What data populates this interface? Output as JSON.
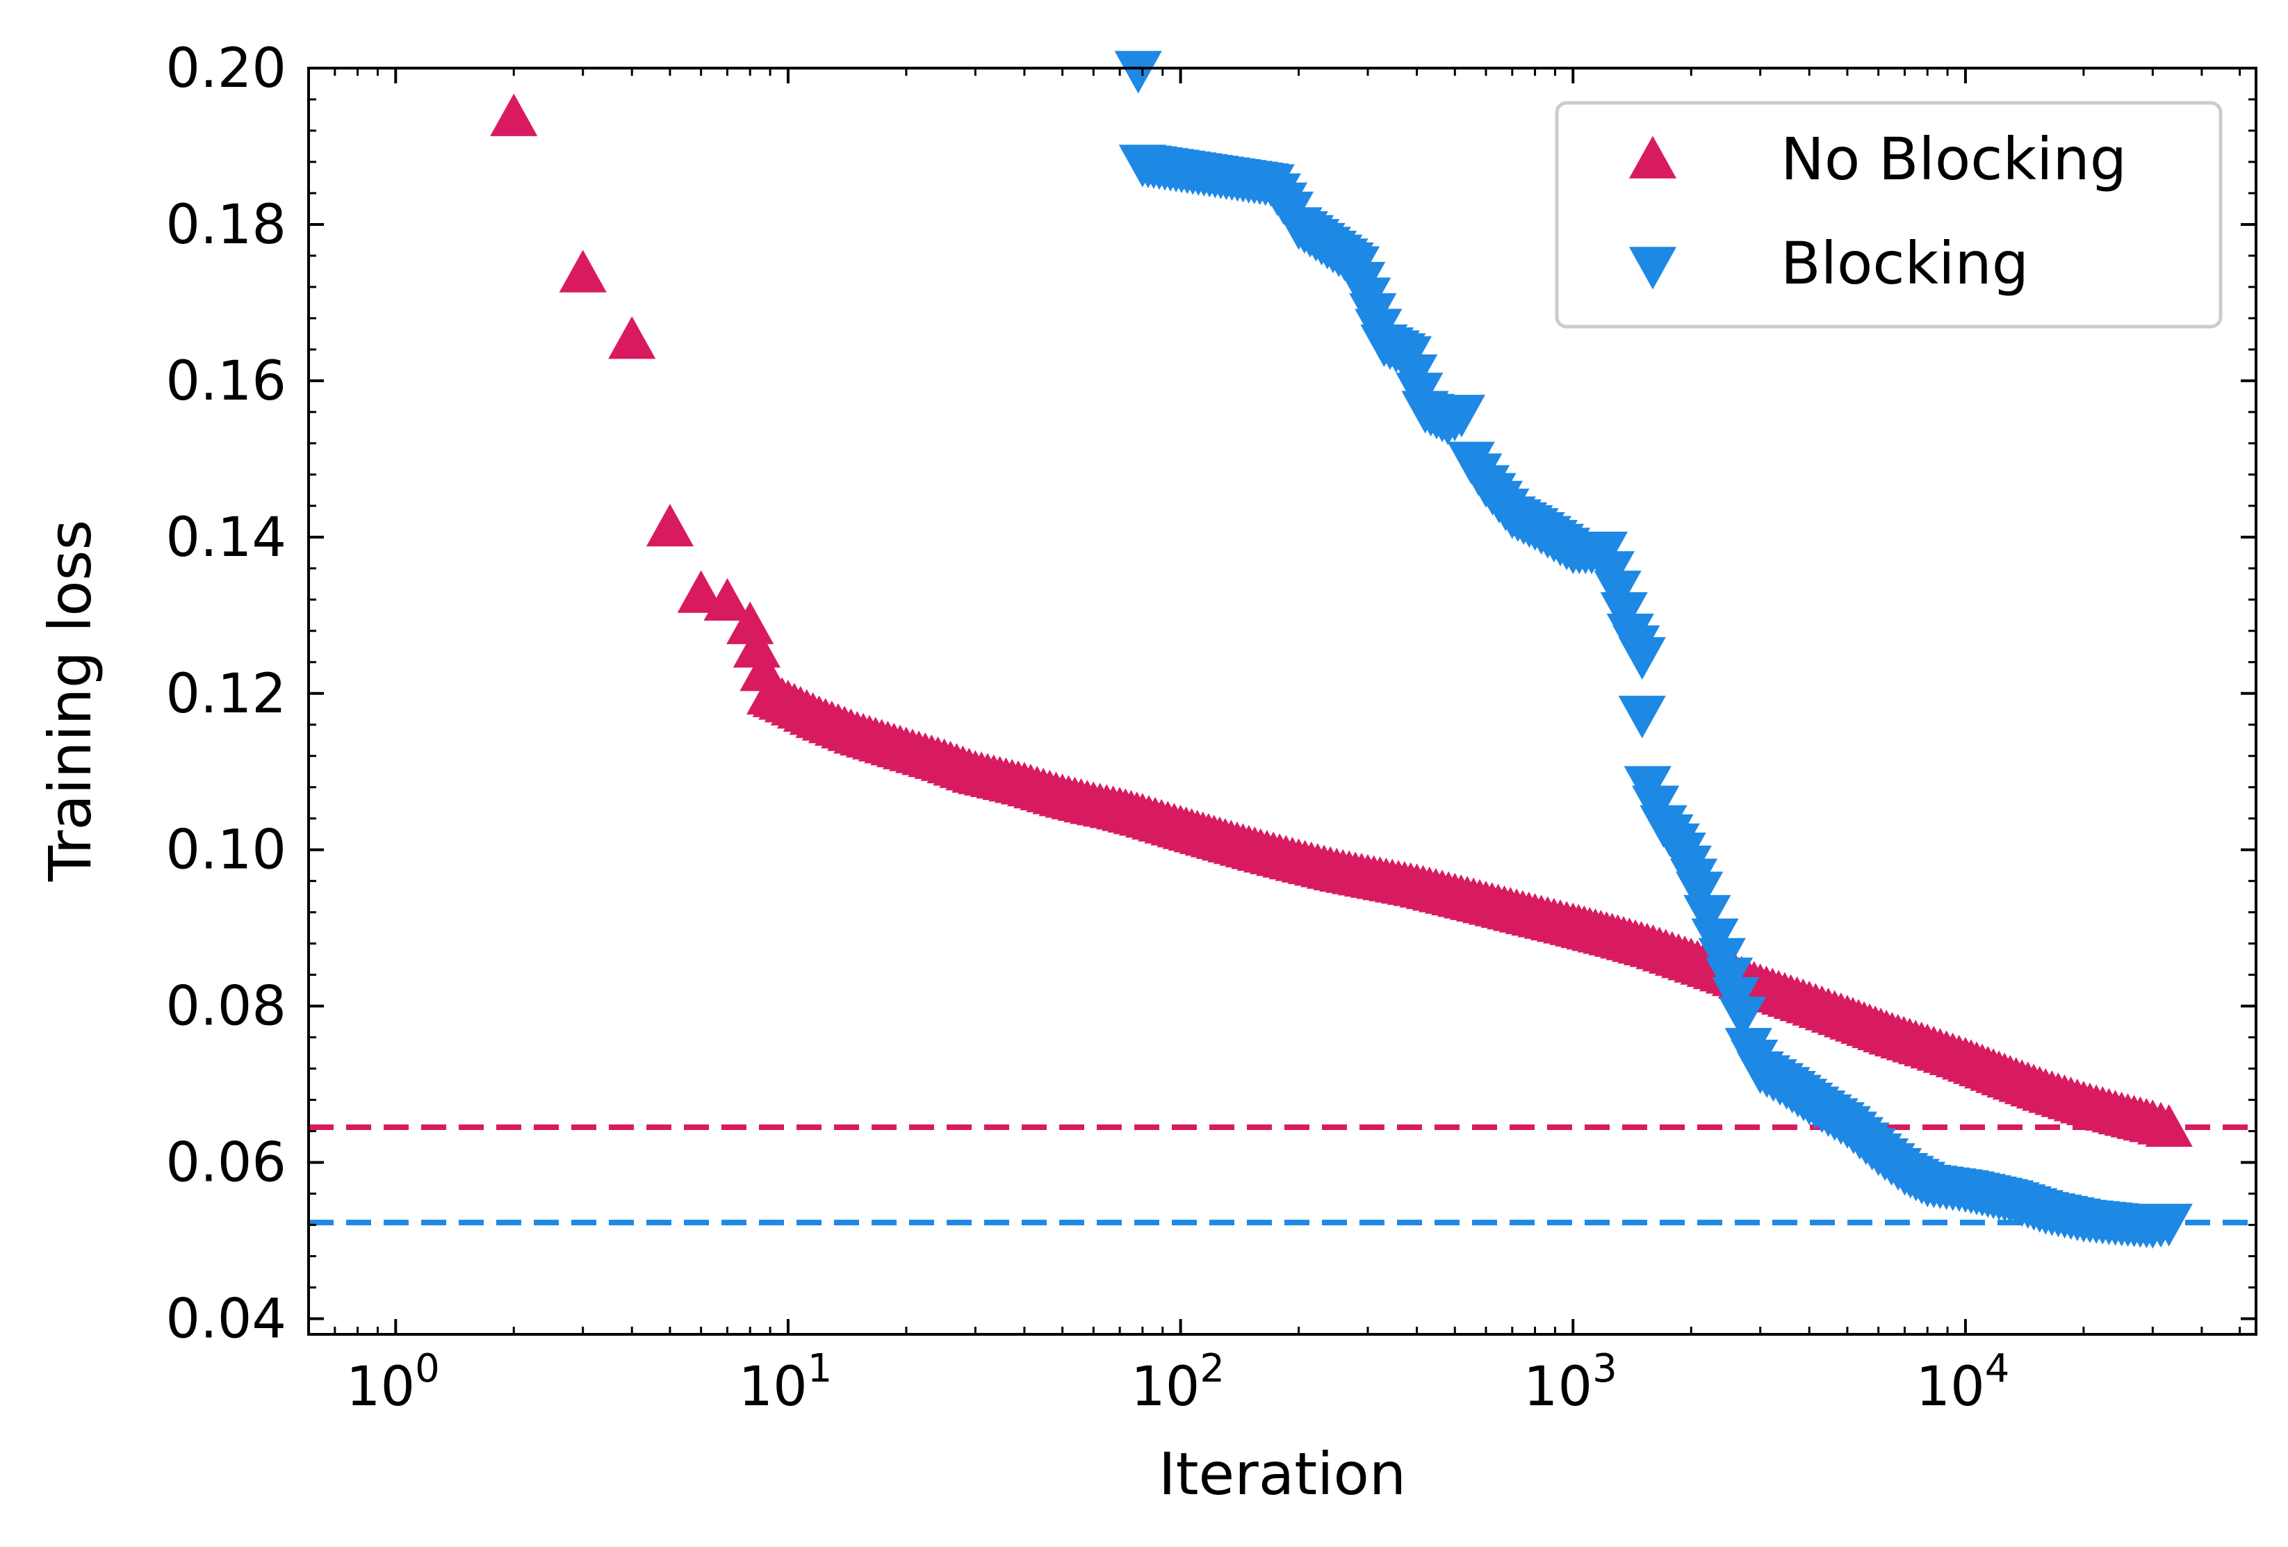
{
  "chart_data": {
    "type": "scatter",
    "title": "",
    "xlabel": "Iteration",
    "ylabel": "Training loss",
    "xscale": "log",
    "xlim": [
      0.6,
      55000
    ],
    "ylim": [
      0.038,
      0.2
    ],
    "xticks": [
      {
        "value": 1,
        "base": "10",
        "exp": "0"
      },
      {
        "value": 10,
        "base": "10",
        "exp": "1"
      },
      {
        "value": 100,
        "base": "10",
        "exp": "2"
      },
      {
        "value": 1000,
        "base": "10",
        "exp": "3"
      },
      {
        "value": 10000,
        "base": "10",
        "exp": "4"
      }
    ],
    "yticks": [
      "0.04",
      "0.06",
      "0.08",
      "0.10",
      "0.12",
      "0.14",
      "0.16",
      "0.18",
      "0.20"
    ],
    "grid": false,
    "legend": {
      "location": "upper right"
    },
    "series": [
      {
        "name": "No Blocking",
        "marker": "triangle-up",
        "color": "#d81b60",
        "points": [
          [
            2,
            0.1935
          ],
          [
            3,
            0.1735
          ],
          [
            4,
            0.165
          ],
          [
            5,
            0.141
          ],
          [
            6,
            0.1325
          ],
          [
            7,
            0.1315
          ],
          [
            8,
            0.1285
          ],
          [
            9,
            0.1195
          ],
          [
            10,
            0.1185
          ],
          [
            12,
            0.1165
          ],
          [
            15,
            0.1145
          ],
          [
            20,
            0.1125
          ],
          [
            25,
            0.111
          ],
          [
            30,
            0.1095
          ],
          [
            40,
            0.108
          ],
          [
            50,
            0.1065
          ],
          [
            60,
            0.1055
          ],
          [
            70,
            0.1048
          ],
          [
            80,
            0.104
          ],
          [
            100,
            0.1025
          ],
          [
            130,
            0.1008
          ],
          [
            160,
            0.0995
          ],
          [
            200,
            0.0982
          ],
          [
            250,
            0.097
          ],
          [
            300,
            0.0962
          ],
          [
            400,
            0.095
          ],
          [
            500,
            0.0938
          ],
          [
            600,
            0.0928
          ],
          [
            800,
            0.0912
          ],
          [
            1000,
            0.09
          ],
          [
            1300,
            0.0885
          ],
          [
            1600,
            0.0872
          ],
          [
            2000,
            0.0855
          ],
          [
            2500,
            0.0838
          ],
          [
            3000,
            0.0822
          ],
          [
            4000,
            0.08
          ],
          [
            5000,
            0.0782
          ],
          [
            6500,
            0.076
          ],
          [
            8000,
            0.0745
          ],
          [
            10000,
            0.0728
          ],
          [
            13000,
            0.0705
          ],
          [
            16000,
            0.0688
          ],
          [
            20000,
            0.0672
          ],
          [
            25000,
            0.0658
          ],
          [
            30000,
            0.0648
          ],
          [
            33000,
            0.0642
          ]
        ]
      },
      {
        "name": "Blocking",
        "marker": "triangle-down",
        "color": "#1e88e5",
        "points": [
          [
            78,
            0.2
          ],
          [
            80,
            0.188
          ],
          [
            170,
            0.1855
          ],
          [
            190,
            0.182
          ],
          [
            200,
            0.18
          ],
          [
            280,
            0.175
          ],
          [
            330,
            0.165
          ],
          [
            380,
            0.1635
          ],
          [
            420,
            0.1565
          ],
          [
            480,
            0.155
          ],
          [
            520,
            0.156
          ],
          [
            550,
            0.15
          ],
          [
            600,
            0.147
          ],
          [
            700,
            0.143
          ],
          [
            800,
            0.1415
          ],
          [
            1000,
            0.1385
          ],
          [
            1200,
            0.1385
          ],
          [
            1300,
            0.1335
          ],
          [
            1400,
            0.128
          ],
          [
            1500,
            0.125
          ],
          [
            1500,
            0.1175
          ],
          [
            1550,
            0.1085
          ],
          [
            1700,
            0.1035
          ],
          [
            1900,
            0.1
          ],
          [
            2100,
            0.095
          ],
          [
            2300,
            0.089
          ],
          [
            2500,
            0.084
          ],
          [
            2700,
            0.079
          ],
          [
            2800,
            0.075
          ],
          [
            3000,
            0.072
          ],
          [
            3500,
            0.07
          ],
          [
            4000,
            0.068
          ],
          [
            5000,
            0.065
          ],
          [
            6000,
            0.0615
          ],
          [
            7000,
            0.059
          ],
          [
            8000,
            0.0575
          ],
          [
            10000,
            0.0568
          ],
          [
            13000,
            0.0555
          ],
          [
            16000,
            0.054
          ],
          [
            20000,
            0.053
          ],
          [
            25000,
            0.0525
          ],
          [
            30000,
            0.0522
          ],
          [
            33000,
            0.0525
          ]
        ]
      }
    ],
    "reference_lines": [
      {
        "y": 0.0645,
        "color": "#d81b60",
        "style": "dashed"
      },
      {
        "y": 0.0523,
        "color": "#1e88e5",
        "style": "dashed"
      }
    ]
  }
}
